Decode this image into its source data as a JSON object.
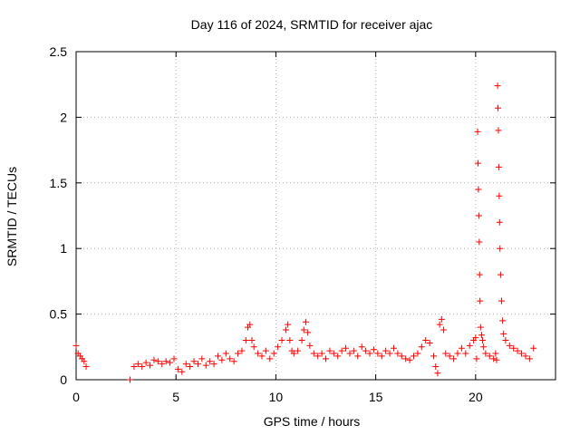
{
  "chart_data": {
    "type": "scatter",
    "title": "Day 116 of 2024, SRMTID for receiver ajac",
    "xlabel": "GPS time / hours",
    "ylabel": "SRMTID / TECUs",
    "xlim": [
      0,
      24
    ],
    "ylim": [
      0,
      2.5
    ],
    "xticks": [
      0,
      5,
      10,
      15,
      20
    ],
    "xtick_labels": [
      "0",
      "5",
      "10",
      "15",
      "20"
    ],
    "yticks": [
      0,
      0.5,
      1,
      1.5,
      2,
      2.5
    ],
    "ytick_labels": [
      "0",
      "0.5",
      "1",
      "1.5",
      "2",
      "2.5"
    ],
    "grid": true,
    "marker": "+",
    "color": "#ff0000",
    "series": [
      {
        "name": "SRMTID",
        "x": [
          0.0,
          0.1,
          0.2,
          0.3,
          0.4,
          0.5,
          2.7,
          2.9,
          3.1,
          3.3,
          3.5,
          3.7,
          3.9,
          4.1,
          4.3,
          4.5,
          4.7,
          4.9,
          5.1,
          5.3,
          5.5,
          5.7,
          5.9,
          6.1,
          6.3,
          6.5,
          6.7,
          6.9,
          7.1,
          7.3,
          7.5,
          7.7,
          7.9,
          8.1,
          8.3,
          8.5,
          8.6,
          8.7,
          8.8,
          8.9,
          9.1,
          9.3,
          9.5,
          9.7,
          9.9,
          10.1,
          10.3,
          10.5,
          10.6,
          10.7,
          10.8,
          10.9,
          11.1,
          11.3,
          11.4,
          11.5,
          11.6,
          11.7,
          11.9,
          12.1,
          12.3,
          12.5,
          12.7,
          12.9,
          13.1,
          13.3,
          13.5,
          13.7,
          13.9,
          14.1,
          14.3,
          14.5,
          14.7,
          14.9,
          15.1,
          15.3,
          15.5,
          15.7,
          15.9,
          16.1,
          16.3,
          16.5,
          16.7,
          16.9,
          17.1,
          17.3,
          17.5,
          17.7,
          17.9,
          18.0,
          18.1,
          18.2,
          18.3,
          18.4,
          18.5,
          18.7,
          18.9,
          19.1,
          19.3,
          19.5,
          19.7,
          19.9,
          20.0,
          20.05,
          20.1,
          20.12,
          20.14,
          20.16,
          20.18,
          20.2,
          20.22,
          20.25,
          20.3,
          20.35,
          20.4,
          20.5,
          20.7,
          20.9,
          21.0,
          21.05,
          21.1,
          21.12,
          21.14,
          21.16,
          21.18,
          21.2,
          21.22,
          21.25,
          21.3,
          21.35,
          21.4,
          21.5,
          21.7,
          21.9,
          22.1,
          22.3,
          22.5,
          22.7,
          22.9
        ],
        "y": [
          0.26,
          0.2,
          0.18,
          0.16,
          0.14,
          0.1,
          0.0,
          0.1,
          0.12,
          0.1,
          0.13,
          0.11,
          0.15,
          0.14,
          0.12,
          0.14,
          0.13,
          0.16,
          0.08,
          0.06,
          0.12,
          0.1,
          0.14,
          0.12,
          0.16,
          0.11,
          0.14,
          0.12,
          0.18,
          0.15,
          0.2,
          0.16,
          0.14,
          0.2,
          0.22,
          0.3,
          0.4,
          0.42,
          0.3,
          0.25,
          0.2,
          0.18,
          0.22,
          0.16,
          0.2,
          0.25,
          0.3,
          0.38,
          0.42,
          0.3,
          0.22,
          0.2,
          0.22,
          0.3,
          0.38,
          0.44,
          0.36,
          0.26,
          0.2,
          0.18,
          0.2,
          0.16,
          0.22,
          0.2,
          0.18,
          0.22,
          0.24,
          0.2,
          0.22,
          0.18,
          0.25,
          0.22,
          0.2,
          0.23,
          0.2,
          0.18,
          0.22,
          0.2,
          0.24,
          0.2,
          0.18,
          0.16,
          0.15,
          0.18,
          0.2,
          0.25,
          0.3,
          0.28,
          0.18,
          0.1,
          0.05,
          0.42,
          0.46,
          0.38,
          0.2,
          0.18,
          0.16,
          0.2,
          0.24,
          0.2,
          0.26,
          0.3,
          0.32,
          0.16,
          1.89,
          1.65,
          1.45,
          1.25,
          1.05,
          0.8,
          0.6,
          0.4,
          0.34,
          0.3,
          0.25,
          0.2,
          0.18,
          0.16,
          0.2,
          0.15,
          2.24,
          2.07,
          1.9,
          1.62,
          1.4,
          1.2,
          1.0,
          0.8,
          0.6,
          0.45,
          0.35,
          0.3,
          0.26,
          0.24,
          0.22,
          0.2,
          0.18,
          0.16,
          0.24
        ]
      }
    ]
  }
}
